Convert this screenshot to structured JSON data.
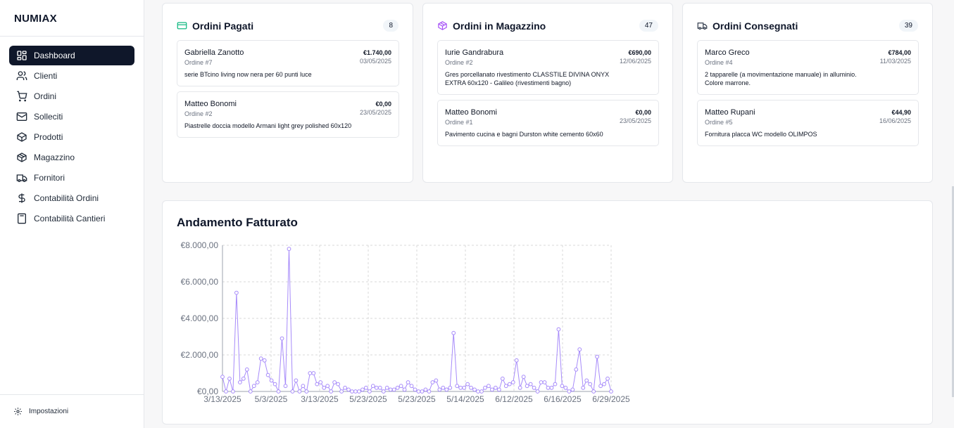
{
  "app": {
    "brand": "NUMIAX"
  },
  "sidebar": {
    "items": [
      {
        "label": "Dashboard",
        "icon": "dashboard-icon",
        "active": true
      },
      {
        "label": "Clienti",
        "icon": "users-icon"
      },
      {
        "label": "Ordini",
        "icon": "cart-icon"
      },
      {
        "label": "Solleciti",
        "icon": "mail-icon"
      },
      {
        "label": "Prodotti",
        "icon": "box-icon"
      },
      {
        "label": "Magazzino",
        "icon": "package-icon"
      },
      {
        "label": "Fornitori",
        "icon": "truck-icon"
      },
      {
        "label": "Contabilità Ordini",
        "icon": "dollar-icon"
      },
      {
        "label": "Contabilità Cantieri",
        "icon": "calculator-icon"
      }
    ],
    "settings_label": "Impostazioni"
  },
  "kanban": [
    {
      "title": "Ordini Pagati",
      "count": "8",
      "icon": "credit-card-icon",
      "color": "#10b981",
      "orders": [
        {
          "customer": "Gabriella Zanotto",
          "number": "Ordine #7",
          "amount": "€1.740,00",
          "date": "03/05/2025",
          "description": "serie BTcino living now nera per 60 punti luce"
        },
        {
          "customer": "Matteo Bonomi",
          "number": "Ordine #2",
          "amount": "€0,00",
          "date": "23/05/2025",
          "description": "Piastrelle doccia modello Armani light grey polished 60x120"
        }
      ]
    },
    {
      "title": "Ordini in Magazzino",
      "count": "47",
      "icon": "package-icon",
      "color": "#a855f7",
      "orders": [
        {
          "customer": "Iurie Gandrabura",
          "number": "Ordine #2",
          "amount": "€690,00",
          "date": "12/06/2025",
          "description": "Gres porcellanato rivestimento CLASSTILE DIVINA ONYX EXTRA 60x120 - Galileo (rivestimenti bagno)"
        },
        {
          "customer": "Matteo Bonomi",
          "number": "Ordine #1",
          "amount": "€0,00",
          "date": "23/05/2025",
          "description": "Pavimento cucina e bagni Durston white cemento 60x60"
        }
      ]
    },
    {
      "title": "Ordini Consegnati",
      "count": "39",
      "icon": "truck-icon",
      "color": "#374151",
      "orders": [
        {
          "customer": "Marco Greco",
          "number": "Ordine #4",
          "amount": "€784,00",
          "date": "11/03/2025",
          "description": "2 tapparelle (a movimentazione manuale) in alluminio. Colore marrone."
        },
        {
          "customer": "Matteo Rupani",
          "number": "Ordine #5",
          "amount": "€44,90",
          "date": "16/06/2025",
          "description": "Fornitura placca WC modello OLIMPOS"
        }
      ]
    }
  ],
  "revenue": {
    "title": "Andamento Fatturato"
  },
  "chart_data": {
    "type": "line",
    "title": "Andamento Fatturato",
    "series_color": "#a78bfa",
    "ylim": [
      0,
      8000
    ],
    "y_ticks": [
      "€0,00",
      "€2.000,00",
      "€4.000,00",
      "€6.000,00",
      "€8.000,00"
    ],
    "x_ticks": [
      "3/13/2025",
      "5/3/2025",
      "3/13/2025",
      "5/23/2025",
      "5/23/2025",
      "5/14/2025",
      "6/12/2025",
      "6/16/2025",
      "6/29/2025"
    ],
    "grid": true,
    "values": [
      800,
      0,
      700,
      0,
      5400,
      500,
      700,
      1200,
      0,
      300,
      500,
      1800,
      1700,
      900,
      600,
      400,
      0,
      2900,
      300,
      7800,
      0,
      600,
      0,
      300,
      0,
      1000,
      1000,
      400,
      500,
      200,
      300,
      0,
      500,
      400,
      0,
      200,
      100,
      0,
      0,
      0,
      100,
      200,
      0,
      300,
      200,
      200,
      0,
      200,
      100,
      100,
      200,
      300,
      100,
      500,
      300,
      100,
      0,
      0,
      100,
      0,
      500,
      600,
      100,
      200,
      100,
      200,
      3200,
      300,
      200,
      200,
      400,
      200,
      100,
      0,
      0,
      200,
      300,
      100,
      200,
      100,
      700,
      300,
      400,
      500,
      1700,
      200,
      800,
      300,
      400,
      200,
      0,
      500,
      500,
      200,
      200,
      400,
      3400,
      300,
      200,
      0,
      100,
      1200,
      2300,
      200,
      600,
      400,
      0,
      1900,
      300,
      400,
      700,
      0
    ]
  }
}
